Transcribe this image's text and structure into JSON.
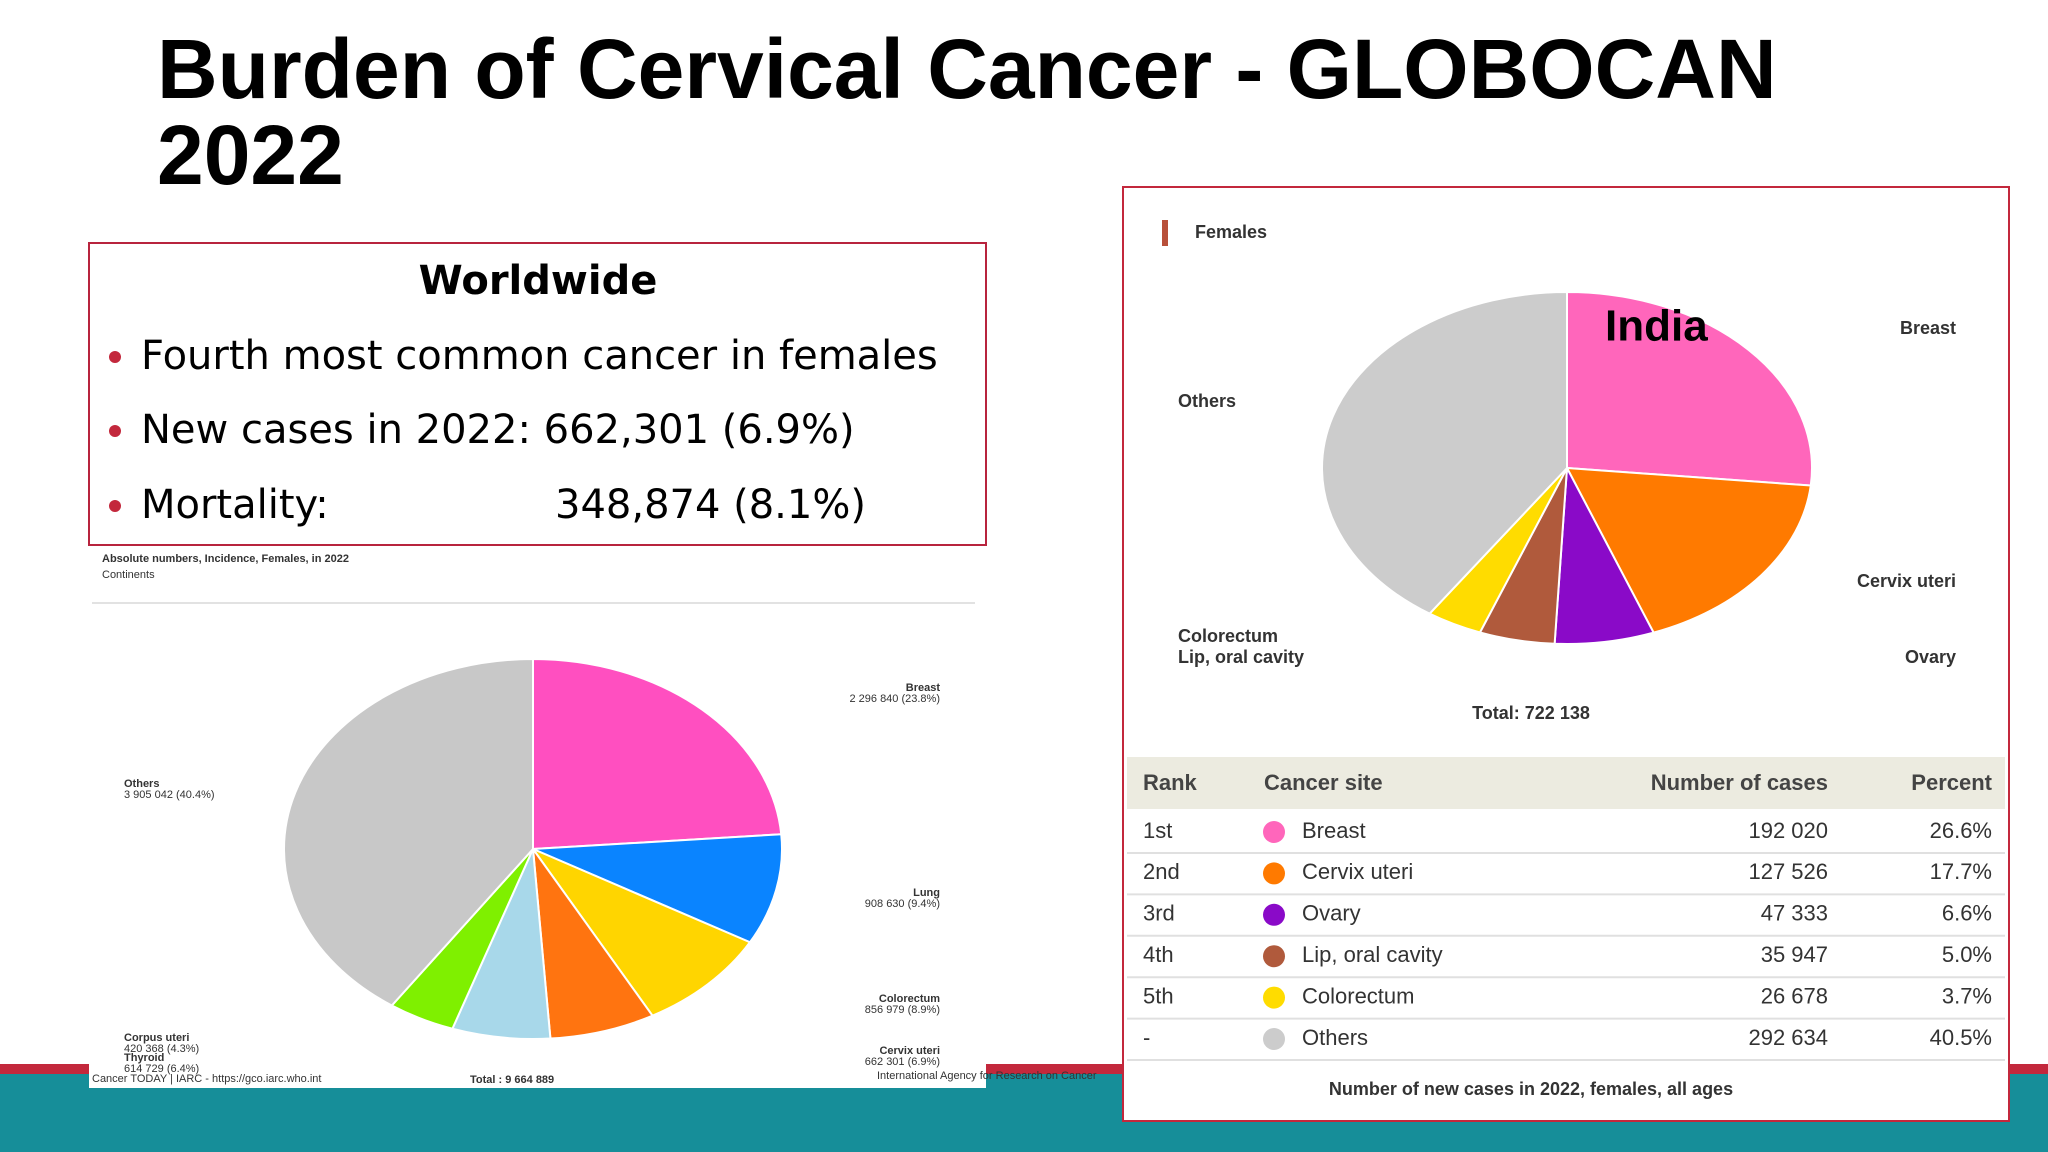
{
  "slide": {
    "title_line1": "Burden of Cervical Cancer - GLOBOCAN",
    "title_line2": "2022"
  },
  "worldwide": {
    "heading": "Worldwide",
    "bullets": [
      "Fourth most common cancer in females",
      "New cases in 2022: 662,301 (6.9%)"
    ],
    "mortality_label": "Mortality:",
    "mortality_value": "348,874 (8.1%)"
  },
  "chart_data": [
    {
      "type": "pie",
      "title": "Absolute numbers, Incidence, Females, in 2022",
      "subtitle": "Continents",
      "categories": [
        "Breast",
        "Lung",
        "Colorectum",
        "Cervix uteri",
        "Thyroid",
        "Corpus uteri",
        "Others"
      ],
      "values": [
        2296840,
        908630,
        856979,
        662301,
        614729,
        420368,
        3905042
      ],
      "value_labels": [
        "2 296 840 (23.8%)",
        "908 630 (9.4%)",
        "856 979 (8.9%)",
        "662 301 (6.9%)",
        "614 729 (6.4%)",
        "420 368 (4.3%)",
        "3 905 042 (40.4%)"
      ],
      "colors": [
        "#ff4fc0",
        "#0a84ff",
        "#ffd500",
        "#ff7410",
        "#a8d8ea",
        "#7ff000",
        "#c8c8c8"
      ],
      "total_label": "Total : 9 664 889",
      "source": "Cancer TODAY | IARC - https://gco.iarc.who.int",
      "agency": "International Agency for Research on Cancer"
    },
    {
      "type": "pie",
      "title": "Females",
      "annotation": "India",
      "categories": [
        "Breast",
        "Cervix uteri",
        "Ovary",
        "Lip, oral cavity",
        "Colorectum",
        "Others"
      ],
      "values": [
        192020,
        127526,
        47333,
        35947,
        26678,
        292634
      ],
      "colors": [
        "#ff66bb",
        "#ff7a00",
        "#8a0ac8",
        "#b05a3c",
        "#ffdc00",
        "#cccccc"
      ],
      "total_label": "Total: 722 138"
    }
  ],
  "table": {
    "header": [
      "Rank",
      "Cancer site",
      "Number of cases",
      "Percent"
    ],
    "rows": [
      [
        "1st",
        "Breast",
        "192 020",
        "26.6%"
      ],
      [
        "2nd",
        "Cervix uteri",
        "127 526",
        "17.7%"
      ],
      [
        "3rd",
        "Ovary",
        "47 333",
        "6.6%"
      ],
      [
        "4th",
        "Lip, oral cavity",
        "35 947",
        "5.0%"
      ],
      [
        "5th",
        "Colorectum",
        "26 678",
        "3.7%"
      ],
      [
        "-",
        "Others",
        "292 634",
        "40.5%"
      ]
    ],
    "caption": "Number of new cases in 2022, females, all ages"
  }
}
